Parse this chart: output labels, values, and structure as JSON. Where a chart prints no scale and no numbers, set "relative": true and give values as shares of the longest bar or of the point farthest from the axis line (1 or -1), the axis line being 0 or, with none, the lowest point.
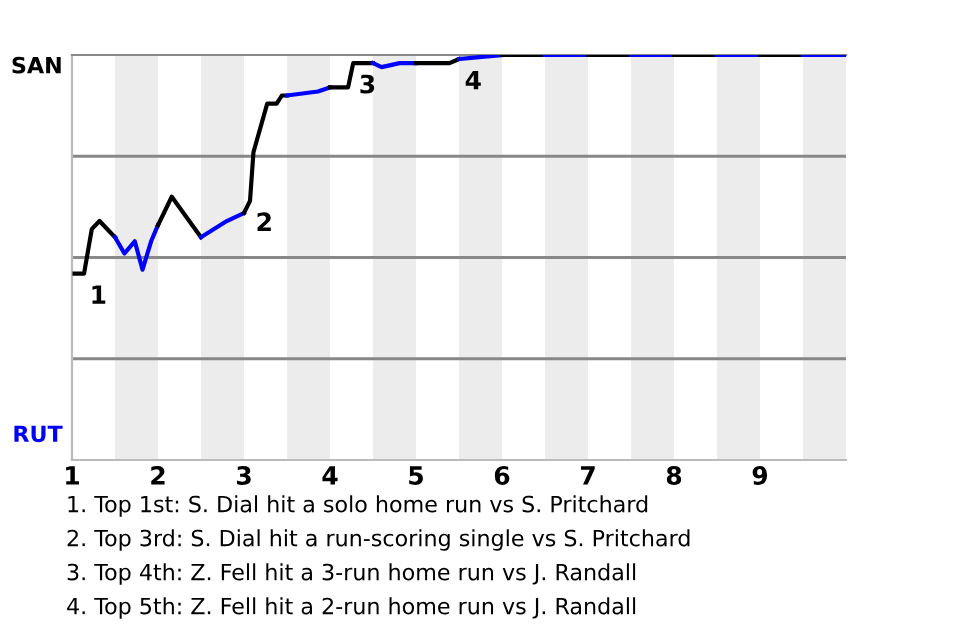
{
  "chart_data": {
    "type": "line",
    "relative": true,
    "xlim": [
      1,
      10
    ],
    "xticks": [
      {
        "value": 1,
        "label": "1"
      },
      {
        "value": 2,
        "label": "2"
      },
      {
        "value": 3,
        "label": "3"
      },
      {
        "value": 4,
        "label": "4"
      },
      {
        "value": 5,
        "label": "5"
      },
      {
        "value": 6,
        "label": "6"
      },
      {
        "value": 7,
        "label": "7"
      },
      {
        "value": 8,
        "label": "8"
      },
      {
        "value": 9,
        "label": "9"
      }
    ],
    "series": [
      {
        "name": "SAN",
        "color": "#000000",
        "x": [
          1.03,
          1.14,
          1.23,
          1.32,
          1.5
        ],
        "values": [
          0.46,
          0.46,
          0.57,
          0.59,
          0.55
        ]
      },
      {
        "name": "RUT",
        "color": "#0000ff",
        "x": [
          1.5,
          1.61,
          1.73,
          1.82,
          1.92,
          2.0
        ],
        "values": [
          0.55,
          0.51,
          0.54,
          0.47,
          0.54,
          0.58
        ]
      },
      {
        "color": "#000000",
        "x": [
          2.0,
          2.16,
          2.5
        ],
        "values": [
          0.58,
          0.65,
          0.55
        ]
      },
      {
        "color": "#0000ff",
        "x": [
          2.5,
          2.8,
          3.0
        ],
        "values": [
          0.55,
          0.59,
          0.61
        ]
      },
      {
        "color": "#000000",
        "x": [
          3.0,
          3.07,
          3.11,
          3.27,
          3.38,
          3.44,
          3.5
        ],
        "values": [
          0.61,
          0.64,
          0.76,
          0.88,
          0.88,
          0.9,
          0.9
        ]
      },
      {
        "color": "#0000ff",
        "x": [
          3.5,
          3.86,
          4.0
        ],
        "values": [
          0.9,
          0.91,
          0.92
        ]
      },
      {
        "color": "#000000",
        "x": [
          4.0,
          4.1,
          4.21,
          4.27,
          4.38,
          4.5
        ],
        "values": [
          0.92,
          0.92,
          0.92,
          0.98,
          0.98,
          0.98
        ]
      },
      {
        "color": "#0000ff",
        "x": [
          4.5,
          4.6,
          4.81,
          5.0
        ],
        "values": [
          0.98,
          0.97,
          0.98,
          0.98
        ]
      },
      {
        "color": "#000000",
        "x": [
          5.0,
          5.39,
          5.5
        ],
        "values": [
          0.98,
          0.98,
          0.99
        ]
      },
      {
        "color": "#0000ff",
        "x": [
          5.5,
          6.0
        ],
        "values": [
          0.99,
          1.0
        ]
      },
      {
        "color": "#000000",
        "x": [
          6.0,
          6.5
        ],
        "values": [
          1.0,
          1.0
        ]
      },
      {
        "color": "#0000ff",
        "x": [
          6.5,
          7.0
        ],
        "values": [
          1.0,
          1.0
        ]
      },
      {
        "color": "#000000",
        "x": [
          7.0,
          7.5
        ],
        "values": [
          1.0,
          1.0
        ]
      },
      {
        "color": "#0000ff",
        "x": [
          7.5,
          8.0
        ],
        "values": [
          1.0,
          1.0
        ]
      },
      {
        "color": "#000000",
        "x": [
          8.0,
          8.5
        ],
        "values": [
          1.0,
          1.0
        ]
      },
      {
        "color": "#0000ff",
        "x": [
          8.5,
          9.0
        ],
        "values": [
          1.0,
          1.0
        ]
      },
      {
        "color": "#000000",
        "x": [
          9.0,
          9.5
        ],
        "values": [
          1.0,
          1.0
        ]
      },
      {
        "color": "#0000ff",
        "x": [
          9.5,
          10.0
        ],
        "values": [
          1.0,
          1.0
        ]
      }
    ],
    "bands": [
      {
        "axis": "x",
        "from": 1.5,
        "to": 2,
        "color": "#ececec"
      },
      {
        "axis": "x",
        "from": 2.5,
        "to": 3,
        "color": "#ececec"
      },
      {
        "axis": "x",
        "from": 3.5,
        "to": 4,
        "color": "#ececec"
      },
      {
        "axis": "x",
        "from": 4.5,
        "to": 5,
        "color": "#ececec"
      },
      {
        "axis": "x",
        "from": 5.5,
        "to": 6,
        "color": "#ececec"
      },
      {
        "axis": "x",
        "from": 6.5,
        "to": 7,
        "color": "#ececec"
      },
      {
        "axis": "x",
        "from": 7.5,
        "to": 8,
        "color": "#ececec"
      },
      {
        "axis": "x",
        "from": 8.5,
        "to": 9,
        "color": "#ececec"
      },
      {
        "axis": "x",
        "from": 9.5,
        "to": 10,
        "color": "#ececec"
      }
    ],
    "annotations": [
      {
        "text": "1",
        "x": 1.14,
        "y": 0.46
      },
      {
        "text": "2",
        "x": 3.07,
        "y": 0.64
      },
      {
        "text": "3",
        "x": 4.27,
        "y": 0.98
      },
      {
        "text": "4",
        "x": 5.5,
        "y": 0.99
      },
      "1. Top 1st: S. Dial hit a solo home run vs S. Pritchard",
      "2. Top 3rd: S. Dial hit a run-scoring single vs S. Pritchard",
      "3. Top 4th: Z. Fell hit a 3-run home run vs J. Randall",
      "4. Top 5th: Z. Fell hit a 2-run home run vs J. Randall"
    ],
    "grid": "y"
  }
}
